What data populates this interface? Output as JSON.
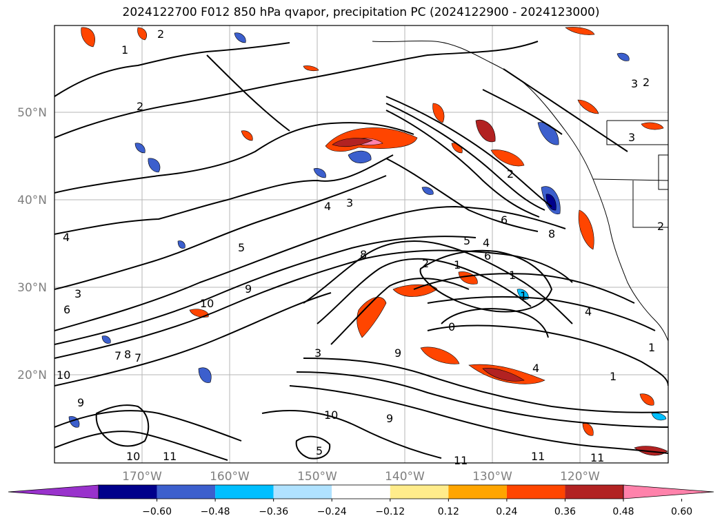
{
  "title": "2024122700 F012 850 hPa qvapor, precipitation PC (2024122900 - 2024123000)",
  "lat_labels": [
    "50°N",
    "40°N",
    "30°N",
    "20°N"
  ],
  "lon_labels": [
    "170°W",
    "160°W",
    "150°W",
    "140°W",
    "130°W",
    "120°W"
  ],
  "colorbar": {
    "tick_labels": [
      "−0.60",
      "−0.48",
      "−0.36",
      "−0.24",
      "−0.12",
      "0.12",
      "0.24",
      "0.36",
      "0.48",
      "0.60"
    ],
    "colors": [
      "#9932cc",
      "#00008b",
      "#3c5fcd",
      "#00bfff",
      "#b0e2ff",
      "#ffffff",
      "#ffec8b",
      "#ffa500",
      "#ff4500",
      "#b22222",
      "#ff82ab"
    ]
  },
  "contour_labels": [
    "2",
    "1",
    "2",
    "3",
    "4",
    "5",
    "6",
    "4",
    "3",
    "10",
    "9",
    "8",
    "7",
    "2",
    "1",
    "1",
    "0",
    "9",
    "10",
    "11",
    "10",
    "11",
    "11",
    "9",
    "1",
    "4",
    "8",
    "6",
    "5",
    "4",
    "3",
    "2",
    "1",
    "3",
    "2",
    "1",
    "7",
    "8",
    "6",
    "9",
    "10",
    "4",
    "3",
    "5",
    "2",
    "11"
  ]
}
